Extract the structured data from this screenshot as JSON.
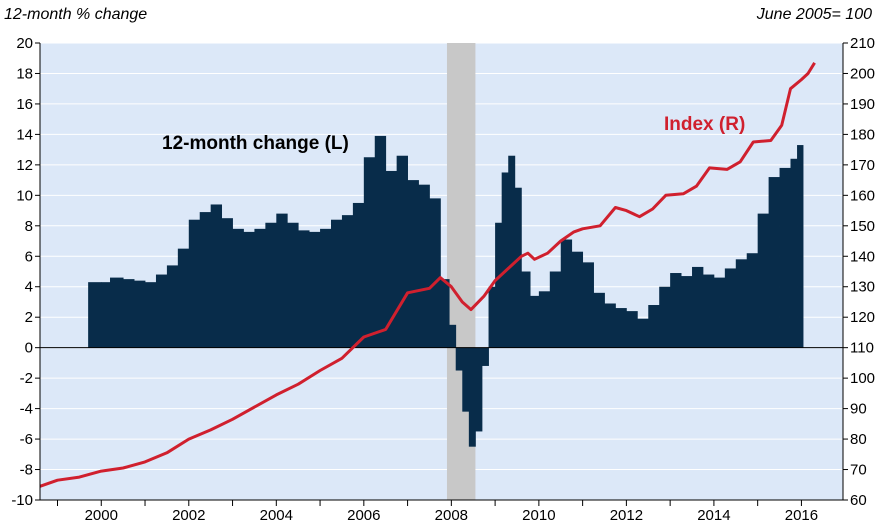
{
  "chart_data": {
    "type": "bar",
    "left_axis_unit": "12-month % change",
    "right_axis_unit": "June 2005= 100",
    "left_axis": {
      "ylim": [
        -10,
        20
      ],
      "ticks": [
        "20",
        "18",
        "16",
        "14",
        "12",
        "10",
        "8",
        "6",
        "4",
        "2",
        "0",
        "-2",
        "-4",
        "-6",
        "-8",
        "-10"
      ]
    },
    "right_axis": {
      "ylim": [
        60,
        210
      ],
      "ticks": [
        "210",
        "200",
        "190",
        "180",
        "170",
        "160",
        "150",
        "140",
        "130",
        "120",
        "110",
        "100",
        "90",
        "80",
        "70",
        "60"
      ]
    },
    "x_axis": {
      "range": [
        1998.6,
        2016.95
      ],
      "tick_labels": [
        "2000",
        "2002",
        "2004",
        "2006",
        "2008",
        "2010",
        "2012",
        "2014",
        "2016"
      ],
      "tick_values": [
        2000,
        2002,
        2004,
        2006,
        2008,
        2010,
        2012,
        2014,
        2016
      ]
    },
    "recession_shading": {
      "start": 2007.9,
      "end": 2008.55,
      "color": "#c8c8c8"
    },
    "series": [
      {
        "name": "12-month change (L)",
        "kind": "bar",
        "axis": "left",
        "color": "#082c4a",
        "points": [
          [
            1999.7,
            4.3
          ],
          [
            2000.0,
            4.3
          ],
          [
            2000.2,
            4.6
          ],
          [
            2000.5,
            4.5
          ],
          [
            2000.75,
            4.4
          ],
          [
            2001.0,
            4.3
          ],
          [
            2001.25,
            4.8
          ],
          [
            2001.5,
            5.4
          ],
          [
            2001.75,
            6.5
          ],
          [
            2002.0,
            8.4
          ],
          [
            2002.25,
            8.9
          ],
          [
            2002.5,
            9.4
          ],
          [
            2002.75,
            8.5
          ],
          [
            2003.0,
            7.8
          ],
          [
            2003.25,
            7.6
          ],
          [
            2003.5,
            7.8
          ],
          [
            2003.75,
            8.2
          ],
          [
            2004.0,
            8.8
          ],
          [
            2004.25,
            8.2
          ],
          [
            2004.5,
            7.7
          ],
          [
            2004.75,
            7.6
          ],
          [
            2005.0,
            7.8
          ],
          [
            2005.25,
            8.4
          ],
          [
            2005.5,
            8.7
          ],
          [
            2005.75,
            9.5
          ],
          [
            2006.0,
            12.5
          ],
          [
            2006.25,
            13.9
          ],
          [
            2006.5,
            11.6
          ],
          [
            2006.75,
            12.6
          ],
          [
            2007.0,
            11.0
          ],
          [
            2007.25,
            10.7
          ],
          [
            2007.5,
            9.8
          ],
          [
            2007.75,
            4.5
          ],
          [
            2007.95,
            1.5
          ],
          [
            2008.1,
            -1.5
          ],
          [
            2008.25,
            -4.2
          ],
          [
            2008.4,
            -6.5
          ],
          [
            2008.55,
            -5.5
          ],
          [
            2008.7,
            -1.2
          ],
          [
            2008.85,
            4.0
          ],
          [
            2009.0,
            8.2
          ],
          [
            2009.15,
            11.5
          ],
          [
            2009.3,
            12.6
          ],
          [
            2009.45,
            10.5
          ],
          [
            2009.6,
            5.0
          ],
          [
            2009.8,
            3.4
          ],
          [
            2010.0,
            3.7
          ],
          [
            2010.25,
            5.0
          ],
          [
            2010.5,
            7.1
          ],
          [
            2010.75,
            6.3
          ],
          [
            2011.0,
            5.6
          ],
          [
            2011.25,
            3.6
          ],
          [
            2011.5,
            2.9
          ],
          [
            2011.75,
            2.6
          ],
          [
            2012.0,
            2.4
          ],
          [
            2012.25,
            1.9
          ],
          [
            2012.5,
            2.8
          ],
          [
            2012.75,
            4.0
          ],
          [
            2013.0,
            4.9
          ],
          [
            2013.25,
            4.7
          ],
          [
            2013.5,
            5.3
          ],
          [
            2013.75,
            4.8
          ],
          [
            2014.0,
            4.6
          ],
          [
            2014.25,
            5.2
          ],
          [
            2014.5,
            5.8
          ],
          [
            2014.75,
            6.2
          ],
          [
            2015.0,
            8.8
          ],
          [
            2015.25,
            11.2
          ],
          [
            2015.5,
            11.8
          ],
          [
            2015.75,
            12.4
          ],
          [
            2015.9,
            13.3
          ]
        ]
      },
      {
        "name": "Index (R)",
        "kind": "line",
        "axis": "right",
        "color": "#d0202e",
        "points": [
          [
            1998.6,
            64.5
          ],
          [
            1999.0,
            66.5
          ],
          [
            1999.5,
            67.5
          ],
          [
            2000.0,
            69.5
          ],
          [
            2000.5,
            70.5
          ],
          [
            2001.0,
            72.5
          ],
          [
            2001.5,
            75.5
          ],
          [
            2002.0,
            80
          ],
          [
            2002.5,
            83
          ],
          [
            2003.0,
            86.5
          ],
          [
            2003.5,
            90.5
          ],
          [
            2004.0,
            94.5
          ],
          [
            2004.5,
            98
          ],
          [
            2005.0,
            102.5
          ],
          [
            2005.5,
            106.5
          ],
          [
            2006.0,
            113.5
          ],
          [
            2006.5,
            116
          ],
          [
            2007.0,
            128
          ],
          [
            2007.5,
            129.5
          ],
          [
            2007.75,
            133
          ],
          [
            2008.0,
            130
          ],
          [
            2008.25,
            125
          ],
          [
            2008.45,
            122.5
          ],
          [
            2008.75,
            127
          ],
          [
            2009.0,
            132
          ],
          [
            2009.3,
            136
          ],
          [
            2009.6,
            140
          ],
          [
            2009.75,
            141
          ],
          [
            2009.9,
            139
          ],
          [
            2010.2,
            141
          ],
          [
            2010.5,
            145
          ],
          [
            2010.8,
            148
          ],
          [
            2011.0,
            149
          ],
          [
            2011.4,
            150
          ],
          [
            2011.75,
            156
          ],
          [
            2012.0,
            155
          ],
          [
            2012.3,
            153
          ],
          [
            2012.6,
            155.5
          ],
          [
            2012.9,
            160
          ],
          [
            2013.3,
            160.5
          ],
          [
            2013.6,
            163
          ],
          [
            2013.9,
            169
          ],
          [
            2014.3,
            168.5
          ],
          [
            2014.6,
            171
          ],
          [
            2014.9,
            177.5
          ],
          [
            2015.3,
            178
          ],
          [
            2015.55,
            183
          ],
          [
            2015.75,
            195
          ],
          [
            2016.0,
            198
          ],
          [
            2016.15,
            200
          ],
          [
            2016.3,
            203.5
          ]
        ]
      }
    ]
  }
}
